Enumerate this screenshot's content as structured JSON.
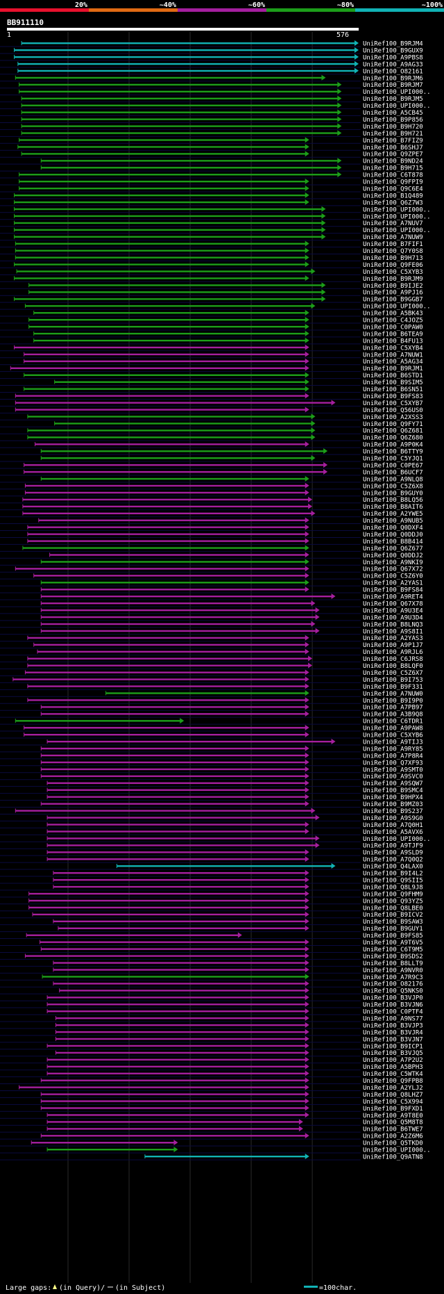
{
  "chart_data": {
    "type": "alignment-overview",
    "title": "BB911110",
    "query_length": 576,
    "scale_start": "1",
    "scale_end": "576",
    "identity_legend": [
      {
        "label": "20%",
        "color": "#e8112d"
      },
      {
        "label": "~40%",
        "color": "#e06a13"
      },
      {
        "label": "~60%",
        "color": "#a51f9f"
      },
      {
        "label": "~80%",
        "color": "#1c9e1a"
      },
      {
        "label": "~100%",
        "color": "#11b2b5"
      }
    ],
    "footer": {
      "gaps_prefix": "Large gaps: ",
      "query_gap_label": "(in Query)/",
      "subject_gap_label": "(in Subject)",
      "scale_label": "=100char."
    },
    "hits": [
      [
        "UniRef100_B9RJM4",
        24,
        576,
        "c"
      ],
      [
        "UniRef100_B9GUX9",
        12,
        576,
        "c"
      ],
      [
        "UniRef100_A9PBS8",
        12,
        576,
        "c"
      ],
      [
        "UniRef100_A9AG33",
        18,
        576,
        "c"
      ],
      [
        "UniRef100_O82161",
        18,
        576,
        "c"
      ],
      [
        "UniRef100_B9RJM6",
        14,
        522,
        "g"
      ],
      [
        "UniRef100_B9RJM7",
        20,
        548,
        "g"
      ],
      [
        "UniRef100_UPI000..",
        20,
        548,
        "g"
      ],
      [
        "UniRef100_B9RJM5",
        24,
        548,
        "g"
      ],
      [
        "UniRef100_UPI000..",
        24,
        548,
        "g"
      ],
      [
        "UniRef100_A5CB45",
        24,
        548,
        "g"
      ],
      [
        "UniRef100_B9P856",
        24,
        548,
        "g"
      ],
      [
        "UniRef100_B9H720",
        24,
        548,
        "g"
      ],
      [
        "UniRef100_B9H721",
        24,
        548,
        "g"
      ],
      [
        "UniRef100_B7FIZ9",
        20,
        495,
        "g"
      ],
      [
        "UniRef100_B6SHJ7",
        18,
        495,
        "g"
      ],
      [
        "UniRef100_Q9ZPE7",
        24,
        495,
        "g"
      ],
      [
        "UniRef100_B9ND24",
        56,
        548,
        "g"
      ],
      [
        "UniRef100_B9H715",
        56,
        548,
        "g"
      ],
      [
        "UniRef100_C6T878",
        20,
        548,
        "g"
      ],
      [
        "UniRef100_Q9FPI9",
        20,
        495,
        "g"
      ],
      [
        "UniRef100_Q9C6E4",
        20,
        495,
        "g"
      ],
      [
        "UniRef100_B1Q489",
        12,
        495,
        "g"
      ],
      [
        "UniRef100_Q6Z7W3",
        12,
        495,
        "g"
      ],
      [
        "UniRef100_UPI000..",
        12,
        522,
        "g"
      ],
      [
        "UniRef100_UPI000..",
        12,
        522,
        "g"
      ],
      [
        "UniRef100_A7NUV7",
        12,
        522,
        "g"
      ],
      [
        "UniRef100_UPI000..",
        12,
        522,
        "g"
      ],
      [
        "UniRef100_A7NUW9",
        12,
        522,
        "g"
      ],
      [
        "UniRef100_B7FIF1",
        14,
        495,
        "g"
      ],
      [
        "UniRef100_Q7Y0S8",
        14,
        495,
        "g"
      ],
      [
        "UniRef100_B9H713",
        14,
        495,
        "g"
      ],
      [
        "UniRef100_Q9FE06",
        12,
        495,
        "g"
      ],
      [
        "UniRef100_C5XYB3",
        16,
        505,
        "g"
      ],
      [
        "UniRef100_B9RJM9",
        12,
        495,
        "g"
      ],
      [
        "UniRef100_B9IJE2",
        36,
        522,
        "g"
      ],
      [
        "UniRef100_A9PJ16",
        36,
        522,
        "g"
      ],
      [
        "UniRef100_B9GGB7",
        12,
        522,
        "g"
      ],
      [
        "UniRef100_UPI000..",
        30,
        505,
        "g"
      ],
      [
        "UniRef100_A5BK43",
        44,
        495,
        "g"
      ],
      [
        "UniRef100_C4JOZ5",
        36,
        495,
        "g"
      ],
      [
        "UniRef100_C0PAW0",
        36,
        495,
        "g"
      ],
      [
        "UniRef100_B6TEA9",
        44,
        495,
        "g"
      ],
      [
        "UniRef100_B4FU13",
        44,
        495,
        "g"
      ],
      [
        "UniRef100_C5XYB4",
        12,
        495,
        "m"
      ],
      [
        "UniRef100_A7NUW1",
        28,
        495,
        "m"
      ],
      [
        "UniRef100_A5AG34",
        28,
        495,
        "m"
      ],
      [
        "UniRef100_B9RJM1",
        6,
        495,
        "m"
      ],
      [
        "UniRef100_B6STD1",
        28,
        495,
        "g"
      ],
      [
        "UniRef100_B9SIM5",
        78,
        495,
        "g"
      ],
      [
        "UniRef100_B6SN51",
        28,
        495,
        "g"
      ],
      [
        "UniRef100_B9FS83",
        14,
        495,
        "m"
      ],
      [
        "UniRef100_C5XYB7",
        14,
        538,
        "m"
      ],
      [
        "UniRef100_Q56US0",
        14,
        495,
        "m"
      ],
      [
        "UniRef100_A2XSS3",
        34,
        505,
        "g"
      ],
      [
        "UniRef100_Q9FY71",
        78,
        505,
        "g"
      ],
      [
        "UniRef100_Q6Z681",
        34,
        505,
        "g"
      ],
      [
        "UniRef100_Q6Z680",
        34,
        505,
        "g"
      ],
      [
        "UniRef100_A9P0K4",
        46,
        495,
        "m"
      ],
      [
        "UniRef100_B6TTY9",
        56,
        525,
        "g"
      ],
      [
        "UniRef100_C5YJQ1",
        56,
        505,
        "g"
      ],
      [
        "UniRef100_C0PE67",
        28,
        525,
        "m"
      ],
      [
        "UniRef100_B6UCF7",
        28,
        525,
        "m"
      ],
      [
        "UniRef100_A9NLQ8",
        56,
        495,
        "g"
      ],
      [
        "UniRef100_C5Z6X8",
        30,
        495,
        "m"
      ],
      [
        "UniRef100_B9GUY0",
        30,
        495,
        "m"
      ],
      [
        "UniRef100_B8LQ56",
        26,
        500,
        "m"
      ],
      [
        "UniRef100_B8AIT6",
        26,
        500,
        "m"
      ],
      [
        "UniRef100_A2YWE5",
        26,
        505,
        "m"
      ],
      [
        "UniRef100_A9NUB5",
        52,
        495,
        "m"
      ],
      [
        "UniRef100_Q0DXF4",
        34,
        495,
        "m"
      ],
      [
        "UniRef100_Q0DDJ0",
        34,
        495,
        "m"
      ],
      [
        "UniRef100_B8B414",
        34,
        495,
        "m"
      ],
      [
        "UniRef100_Q6Z677",
        26,
        495,
        "g"
      ],
      [
        "UniRef100_Q0DDJ2",
        70,
        495,
        "m"
      ],
      [
        "UniRef100_A9NKI9",
        56,
        495,
        "g"
      ],
      [
        "UniRef100_Q67X72",
        14,
        495,
        "m"
      ],
      [
        "UniRef100_C5Z6Y0",
        44,
        495,
        "m"
      ],
      [
        "UniRef100_A2YAS1",
        56,
        495,
        "g"
      ],
      [
        "UniRef100_B9FS84",
        56,
        495,
        "m"
      ],
      [
        "UniRef100_A9RET4",
        56,
        538,
        "m"
      ],
      [
        "UniRef100_Q67X78",
        56,
        505,
        "m"
      ],
      [
        "UniRef100_A9U3E4",
        56,
        512,
        "m"
      ],
      [
        "UniRef100_A9U3D4",
        56,
        512,
        "m"
      ],
      [
        "UniRef100_B8LNQ3",
        56,
        505,
        "m"
      ],
      [
        "UniRef100_A9S8I1",
        56,
        512,
        "m"
      ],
      [
        "UniRef100_A2YAS3",
        34,
        495,
        "m"
      ],
      [
        "UniRef100_A9P1J7",
        44,
        495,
        "m"
      ],
      [
        "UniRef100_A9RJL6",
        50,
        495,
        "m"
      ],
      [
        "UniRef100_C6JRS8",
        34,
        500,
        "m"
      ],
      [
        "UniRef100_B8LQF0",
        34,
        500,
        "m"
      ],
      [
        "UniRef100_C5Z6X7",
        30,
        495,
        "m"
      ],
      [
        "UniRef100_B9I753",
        10,
        495,
        "m"
      ],
      [
        "UniRef100_B9F331",
        34,
        495,
        "m"
      ],
      [
        "UniRef100_A7NUW0",
        162,
        495,
        "g"
      ],
      [
        "UniRef100_B9I9P0",
        34,
        495,
        "m"
      ],
      [
        "UniRef100_A7PB97",
        56,
        495,
        "m"
      ],
      [
        "UniRef100_A3B9Q8",
        56,
        495,
        "m"
      ],
      [
        "UniRef100_C6TDR1",
        14,
        290,
        "g"
      ],
      [
        "UniRef100_A9PAW8",
        28,
        495,
        "m"
      ],
      [
        "UniRef100_C5XYB6",
        28,
        495,
        "m"
      ],
      [
        "UniRef100_A9TIJ3",
        66,
        538,
        "m"
      ],
      [
        "UniRef100_A9RY85",
        56,
        495,
        "m"
      ],
      [
        "UniRef100_A7P8R4",
        56,
        495,
        "m"
      ],
      [
        "UniRef100_Q7XF93",
        56,
        495,
        "m"
      ],
      [
        "UniRef100_A9SMT0",
        56,
        495,
        "m"
      ],
      [
        "UniRef100_A9SVC0",
        56,
        495,
        "m"
      ],
      [
        "UniRef100_A9SQW7",
        66,
        495,
        "m"
      ],
      [
        "UniRef100_B9SMC4",
        66,
        495,
        "m"
      ],
      [
        "UniRef100_B9HPX4",
        66,
        495,
        "m"
      ],
      [
        "UniRef100_B9MZ03",
        56,
        495,
        "m"
      ],
      [
        "UniRef100_B9S237",
        14,
        505,
        "m"
      ],
      [
        "UniRef100_A9S9G0",
        66,
        512,
        "m"
      ],
      [
        "UniRef100_A7Q0H1",
        66,
        495,
        "m"
      ],
      [
        "UniRef100_A5AVX6",
        66,
        495,
        "m"
      ],
      [
        "UniRef100_UPI000..",
        66,
        512,
        "m"
      ],
      [
        "UniRef100_A9TJF9",
        66,
        512,
        "m"
      ],
      [
        "UniRef100_A9SLD9",
        66,
        495,
        "m"
      ],
      [
        "UniRef100_A7Q0Q2",
        66,
        495,
        "m"
      ],
      [
        "UniRef100_Q4LAX0",
        180,
        538,
        "c"
      ],
      [
        "UniRef100_B9I4L2",
        76,
        495,
        "m"
      ],
      [
        "UniRef100_Q9SII5",
        76,
        495,
        "m"
      ],
      [
        "UniRef100_Q8L9J8",
        76,
        495,
        "m"
      ],
      [
        "UniRef100_Q9FHM9",
        36,
        495,
        "m"
      ],
      [
        "UniRef100_Q93YZ5",
        36,
        495,
        "m"
      ],
      [
        "UniRef100_Q8LBE0",
        36,
        495,
        "m"
      ],
      [
        "UniRef100_B9ICV2",
        42,
        495,
        "m"
      ],
      [
        "UniRef100_B9SAW3",
        76,
        495,
        "m"
      ],
      [
        "UniRef100_B9GUY1",
        84,
        495,
        "m"
      ],
      [
        "UniRef100_B9FS85",
        32,
        385,
        "m"
      ],
      [
        "UniRef100_A9T6V5",
        54,
        495,
        "m"
      ],
      [
        "UniRef100_C6T9M5",
        56,
        495,
        "m"
      ],
      [
        "UniRef100_B9SDS2",
        30,
        495,
        "m"
      ],
      [
        "UniRef100_B8LLT9",
        76,
        495,
        "m"
      ],
      [
        "UniRef100_A9NVR0",
        76,
        495,
        "m"
      ],
      [
        "UniRef100_A7R9C3",
        58,
        495,
        "g"
      ],
      [
        "UniRef100_O82176",
        76,
        495,
        "m"
      ],
      [
        "UniRef100_Q5NKS0",
        86,
        495,
        "m"
      ],
      [
        "UniRef100_B3VJP0",
        66,
        495,
        "m"
      ],
      [
        "UniRef100_B3VJN6",
        66,
        495,
        "m"
      ],
      [
        "UniRef100_C0PTF4",
        66,
        495,
        "m"
      ],
      [
        "UniRef100_A9NS77",
        80,
        495,
        "m"
      ],
      [
        "UniRef100_B3VJP3",
        80,
        495,
        "m"
      ],
      [
        "UniRef100_B3VJR4",
        80,
        495,
        "m"
      ],
      [
        "UniRef100_B3VJN7",
        80,
        495,
        "m"
      ],
      [
        "UniRef100_B9ICP1",
        66,
        495,
        "m"
      ],
      [
        "UniRef100_B3VJQ5",
        80,
        495,
        "m"
      ],
      [
        "UniRef100_A7P2U2",
        66,
        495,
        "m"
      ],
      [
        "UniRef100_A5BPH3",
        66,
        495,
        "m"
      ],
      [
        "UniRef100_C5WTK4",
        66,
        495,
        "m"
      ],
      [
        "UniRef100_Q9FPB8",
        56,
        495,
        "m"
      ],
      [
        "UniRef100_A2YLJ2",
        20,
        495,
        "m"
      ],
      [
        "UniRef100_Q8LHZ7",
        56,
        495,
        "m"
      ],
      [
        "UniRef100_C5X994",
        56,
        495,
        "m"
      ],
      [
        "UniRef100_B9FXD1",
        56,
        495,
        "m"
      ],
      [
        "UniRef100_A9T8E0",
        66,
        495,
        "m"
      ],
      [
        "UniRef100_Q5M8T8",
        66,
        485,
        "m"
      ],
      [
        "UniRef100_B6TWE7",
        66,
        485,
        "m"
      ],
      [
        "UniRef100_A2Z6M6",
        56,
        495,
        "m"
      ],
      [
        "UniRef100_Q5TKD0",
        40,
        280,
        "m"
      ],
      [
        "UniRef100_UPI000..",
        66,
        280,
        "g"
      ],
      [
        "UniRef100_Q9ATN8",
        226,
        495,
        "c"
      ]
    ]
  }
}
